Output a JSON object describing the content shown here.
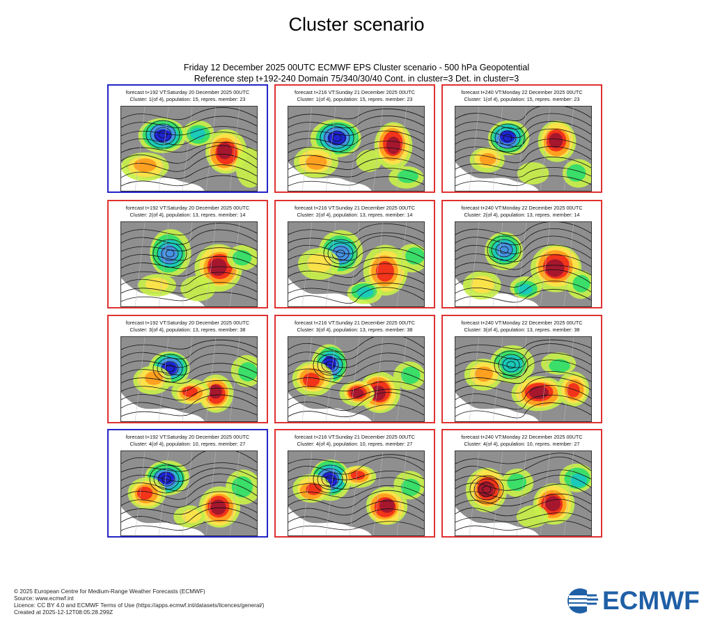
{
  "page": {
    "title": "Cluster scenario",
    "subtitle_line1": "Friday 12 December 2025 00UTC ECMWF EPS Cluster scenario - 500 hPa Geopotential",
    "subtitle_line2": "Reference step t+192-240 Domain 75/340/30/40 Cont. in cluster=3 Det. in cluster=3"
  },
  "colors": {
    "cluster_contains_control": "#2323c8",
    "cluster_default": "#e03030",
    "map_land": "#8f8f8f",
    "anomaly_scale": [
      "#1b1bd0",
      "#4a8de6",
      "#19c8c0",
      "#2fdc6a",
      "#c8f04a",
      "#ffe14a",
      "#ff9a1c",
      "#f02a1a",
      "#a01530"
    ]
  },
  "panels": [
    {
      "line1": "forecast t+192 VT:Saturday 20 December 2025 00UTC",
      "line2": "Cluster: 1(of 4), population: 15, repres. member: 23",
      "frame": "blue"
    },
    {
      "line1": "forecast t+216 VT:Sunday 21 December 2025 00UTC",
      "line2": "Cluster: 1(of 4), population: 15, repres. member: 23",
      "frame": "red"
    },
    {
      "line1": "forecast t+240 VT:Monday 22 December 2025 00UTC",
      "line2": "Cluster: 1(of 4), population: 15, repres. member: 23",
      "frame": "red"
    },
    {
      "line1": "forecast t+192 VT:Saturday 20 December 2025 00UTC",
      "line2": "Cluster: 2(of 4), population: 13, repres. member: 14",
      "frame": "red"
    },
    {
      "line1": "forecast t+216 VT:Sunday 21 December 2025 00UTC",
      "line2": "Cluster: 2(of 4), population: 13, repres. member: 14",
      "frame": "red"
    },
    {
      "line1": "forecast t+240 VT:Monday 22 December 2025 00UTC",
      "line2": "Cluster: 2(of 4), population: 13, repres. member: 14",
      "frame": "red"
    },
    {
      "line1": "forecast t+192 VT:Saturday 20 December 2025 00UTC",
      "line2": "Cluster: 3(of 4), population: 13, repres. member: 38",
      "frame": "red"
    },
    {
      "line1": "forecast t+216 VT:Sunday 21 December 2025 00UTC",
      "line2": "Cluster: 3(of 4), population: 13, repres. member: 38",
      "frame": "red"
    },
    {
      "line1": "forecast t+240 VT:Monday 22 December 2025 00UTC",
      "line2": "Cluster: 3(of 4), population: 13, repres. member: 38",
      "frame": "red"
    },
    {
      "line1": "forecast t+192 VT:Saturday 20 December 2025 00UTC",
      "line2": "Cluster: 4(of 4), population: 10, repres. member: 27",
      "frame": "blue"
    },
    {
      "line1": "forecast t+216 VT:Sunday 21 December 2025 00UTC",
      "line2": "Cluster: 4(of 4), population: 10, repres. member: 27",
      "frame": "red"
    },
    {
      "line1": "forecast t+240 VT:Monday 22 December 2025 00UTC",
      "line2": "Cluster: 4(of 4), population: 10, repres. member: 27",
      "frame": "red"
    }
  ],
  "footer": {
    "copyright": "© 2025 European Centre for Medium-Range Weather Forecasts (ECMWF)",
    "source": "Source: www.ecmwf.int",
    "licence": "Licence: CC BY 4.0 and ECMWF Terms of Use (https://apps.ecmwf.int/datasets/licences/general/)",
    "created": "Created at 2025-12-12T08:05:28.299Z"
  },
  "logo": {
    "text": "ECMWF",
    "icon": "ecmwf-logo-icon"
  }
}
